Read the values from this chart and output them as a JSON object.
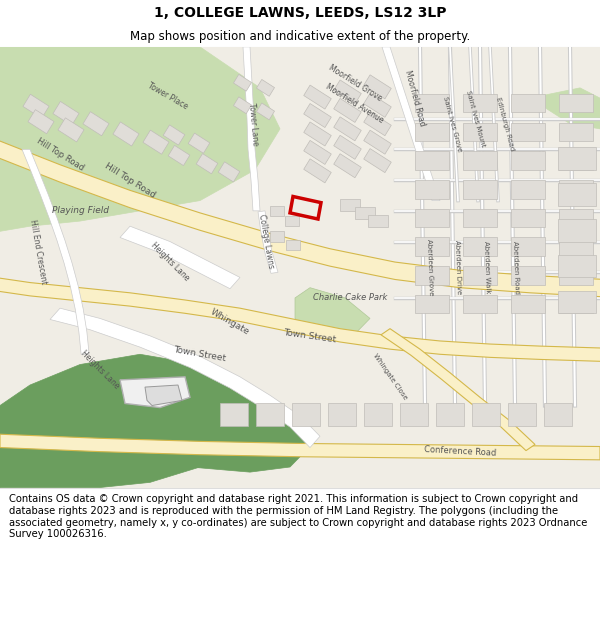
{
  "title": "1, COLLEGE LAWNS, LEEDS, LS12 3LP",
  "subtitle": "Map shows position and indicative extent of the property.",
  "footer": "Contains OS data © Crown copyright and database right 2021. This information is subject to Crown copyright and database rights 2023 and is reproduced with the permission of HM Land Registry. The polygons (including the associated geometry, namely x, y co-ordinates) are subject to Crown copyright and database rights 2023 Ordnance Survey 100026316.",
  "map_bg": "#f0ede5",
  "road_yellow_fill": "#faf0c8",
  "road_yellow_edge": "#d4b84a",
  "road_white": "#ffffff",
  "road_gray": "#e8e8e8",
  "road_gray_edge": "#cccccc",
  "green_light": "#c8ddb0",
  "green_dark": "#6b9e5e",
  "building_fill": "#e0ddd8",
  "building_edge": "#c0bdb8",
  "red_color": "#cc0000",
  "text_color": "#555555",
  "title_size": 10,
  "subtitle_size": 8.5,
  "footer_size": 7.2
}
